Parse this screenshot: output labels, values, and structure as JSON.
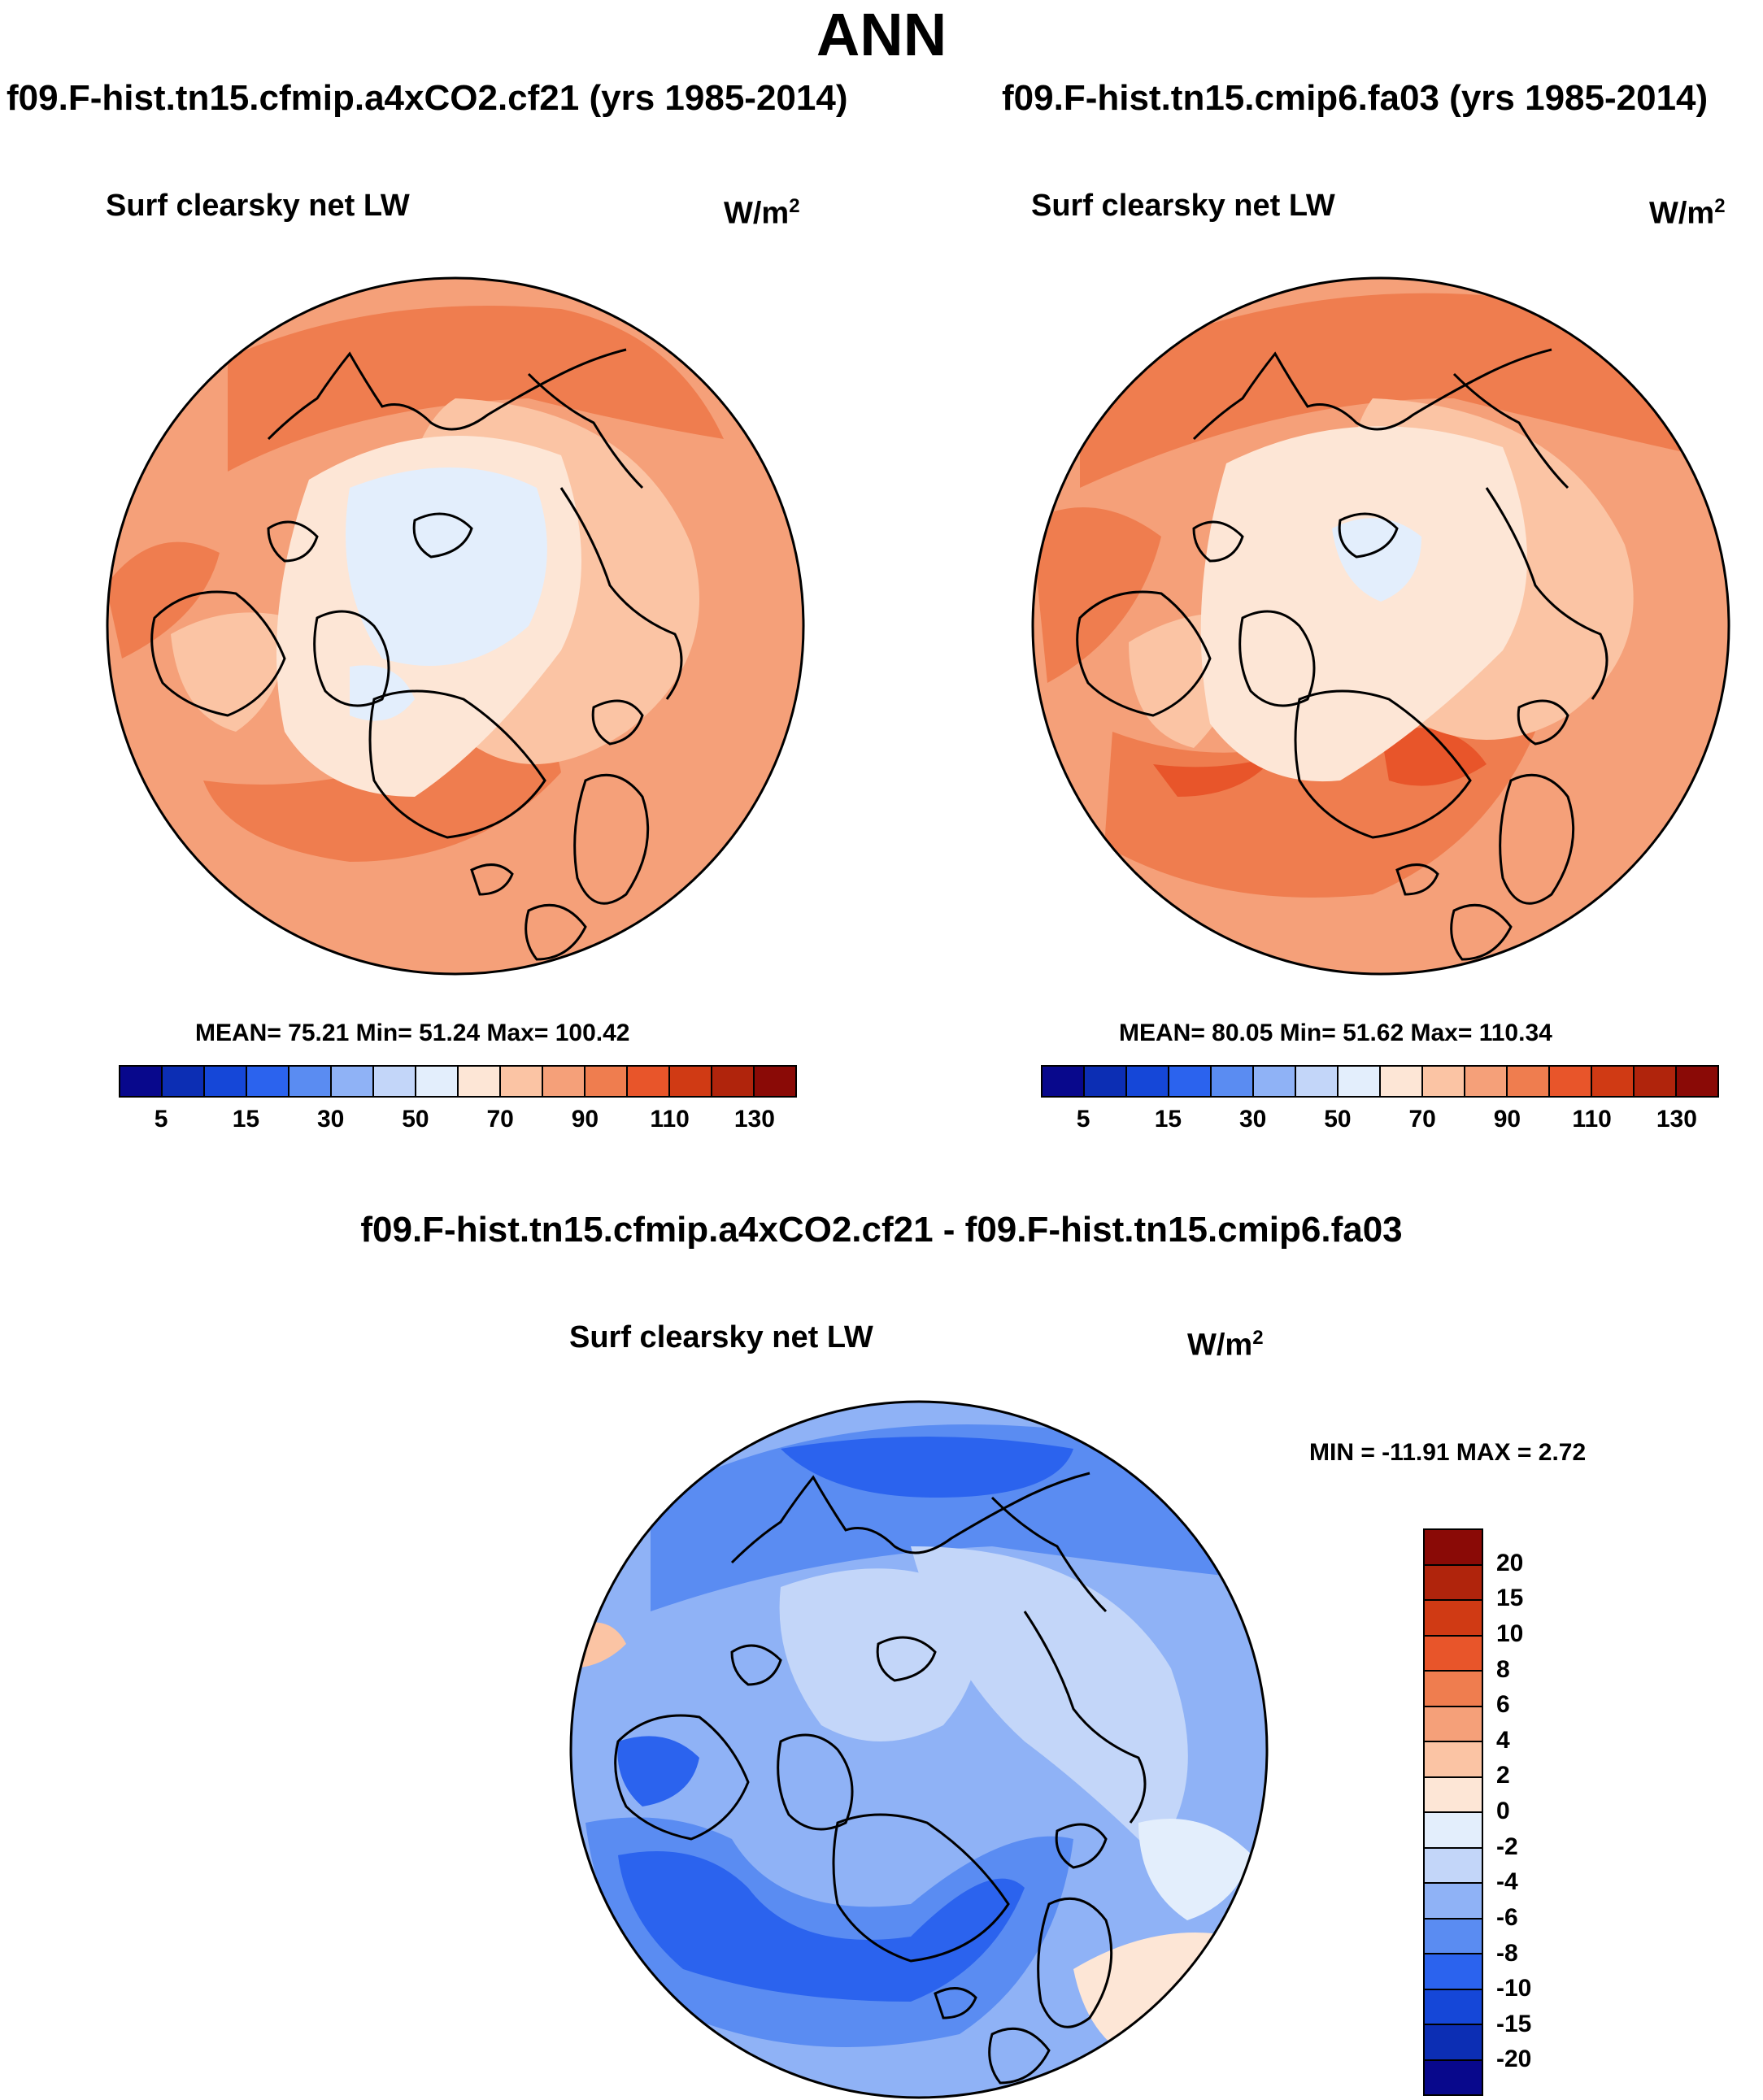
{
  "title": "ANN",
  "left_panel": {
    "case": "f09.F-hist.tn15.cfmip.a4xCO2.cf21 (yrs 1985-2014)",
    "variable": "Surf clearsky net LW",
    "units_base": "W/m",
    "units_exp": "2",
    "stats": "MEAN=  75.21  Min=  51.24  Max= 100.42",
    "colorbar_ticks": [
      "5",
      "15",
      "30",
      "50",
      "70",
      "90",
      "110",
      "130"
    ]
  },
  "right_panel": {
    "case": "f09.F-hist.tn15.cmip6.fa03 (yrs 1985-2014)",
    "variable": "Surf clearsky net LW",
    "units_base": "W/m",
    "units_exp": "2",
    "stats": "MEAN=  80.05  Min=  51.62  Max= 110.34",
    "colorbar_ticks": [
      "5",
      "15",
      "30",
      "50",
      "70",
      "90",
      "110",
      "130"
    ]
  },
  "diff_panel": {
    "case": "f09.F-hist.tn15.cfmip.a4xCO2.cf21 - f09.F-hist.tn15.cmip6.fa03",
    "variable": "Surf clearsky net LW",
    "units_base": "W/m",
    "units_exp": "2",
    "stats": "MIN = -11.91 MAX =   2.72",
    "colorbar_ticks": [
      "20",
      "15",
      "10",
      "8",
      "6",
      "4",
      "2",
      "0",
      "-2",
      "-4",
      "-6",
      "-8",
      "-10",
      "-15",
      "-20"
    ]
  },
  "colors": {
    "abs_palette": [
      "#08088c",
      "#0c2eb4",
      "#1547d8",
      "#2b63ee",
      "#5a8cf2",
      "#8fb2f6",
      "#c3d6f9",
      "#e3eefc",
      "#fde6d6",
      "#fbc4a4",
      "#f5a079",
      "#ef7d4f",
      "#e8552a",
      "#d03a14",
      "#b0240c",
      "#8a0a06"
    ],
    "diff_palette": [
      "#8a0a06",
      "#b0240c",
      "#d03a14",
      "#e8552a",
      "#ef7d4f",
      "#f5a079",
      "#fbc4a4",
      "#fde6d6",
      "#e3eefc",
      "#c3d6f9",
      "#8fb2f6",
      "#5a8cf2",
      "#2b63ee",
      "#1547d8",
      "#0c2eb4",
      "#08088c"
    ]
  }
}
